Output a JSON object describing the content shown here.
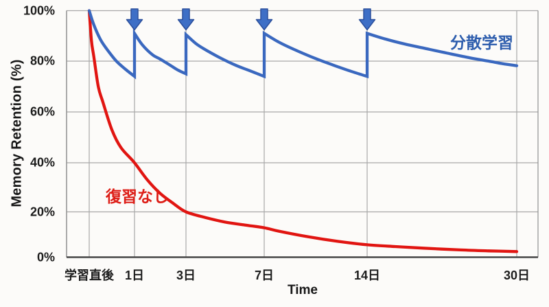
{
  "chart_data": {
    "type": "line",
    "title": "",
    "xlabel": "Time",
    "ylabel": "Memory Retention (%)",
    "x_tick_labels": [
      "学習直後",
      "1日",
      "3日",
      "7日",
      "14日",
      "30日"
    ],
    "x_tick_days": [
      0,
      1,
      3,
      7,
      14,
      30
    ],
    "y_tick_labels": [
      "100%",
      "80%",
      "60%",
      "40%",
      "20%",
      "0%"
    ],
    "y_tick_values": [
      100,
      80,
      60,
      40,
      20,
      0
    ],
    "ylim": [
      0,
      100
    ],
    "grid": true,
    "legend_position": "inline-annotations",
    "colors": {
      "grid": "#a8a8a8",
      "plot_border": "#8f8f8f",
      "axis_bottom": "#474747",
      "tick_text": "#1c1c1c"
    },
    "series": [
      {
        "name": "復習なし",
        "color": "#e11511",
        "points_day_percent": [
          [
            0,
            100
          ],
          [
            0.05,
            88
          ],
          [
            0.1,
            82
          ],
          [
            0.2,
            70
          ],
          [
            0.3,
            64
          ],
          [
            0.5,
            53
          ],
          [
            0.7,
            46
          ],
          [
            1,
            40
          ],
          [
            1.5,
            33
          ],
          [
            2,
            27.5
          ],
          [
            2.5,
            23.5
          ],
          [
            3,
            20
          ],
          [
            4,
            17.5
          ],
          [
            5,
            15.5
          ],
          [
            6,
            14.2
          ],
          [
            7,
            13
          ],
          [
            8,
            11.5
          ],
          [
            10,
            9
          ],
          [
            12,
            7
          ],
          [
            14,
            5.5
          ],
          [
            17,
            4.7
          ],
          [
            20,
            4
          ],
          [
            24,
            3.2
          ],
          [
            27,
            2.8
          ],
          [
            30,
            2.5
          ]
        ]
      },
      {
        "name": "分散学習",
        "color": "#3a68bf",
        "arrow_fill": "#3e6fc6",
        "arrow_stroke": "#2a4e9b",
        "review_arrow_days": [
          1,
          3,
          7,
          14
        ],
        "segments_day_percent": [
          [
            [
              0,
              100
            ],
            [
              0.1,
              94.5
            ],
            [
              0.25,
              88.5
            ],
            [
              0.4,
              84.5
            ],
            [
              0.6,
              80
            ],
            [
              0.8,
              76.8
            ],
            [
              1,
              74
            ]
          ],
          [
            [
              1,
              91
            ],
            [
              1.3,
              86.5
            ],
            [
              1.7,
              82.5
            ],
            [
              2,
              80.8
            ],
            [
              2.4,
              78.3
            ],
            [
              2.7,
              76.4
            ],
            [
              3,
              75
            ]
          ],
          [
            [
              3,
              90.5
            ],
            [
              3.5,
              87
            ],
            [
              4,
              84.5
            ],
            [
              4.7,
              81.5
            ],
            [
              5.5,
              78.5
            ],
            [
              6.2,
              76.4
            ],
            [
              7,
              74
            ]
          ],
          [
            [
              7,
              91
            ],
            [
              8,
              87.5
            ],
            [
              9,
              84.7
            ],
            [
              10.5,
              81
            ],
            [
              12,
              77.8
            ],
            [
              13,
              75.8
            ],
            [
              14,
              74
            ]
          ],
          [
            [
              14,
              91
            ],
            [
              16,
              88.7
            ],
            [
              18,
              86.8
            ],
            [
              20,
              85.2
            ],
            [
              22.5,
              83.2
            ],
            [
              25,
              81.3
            ],
            [
              27,
              80
            ],
            [
              28.5,
              79
            ],
            [
              30,
              78.2
            ]
          ]
        ]
      }
    ]
  }
}
